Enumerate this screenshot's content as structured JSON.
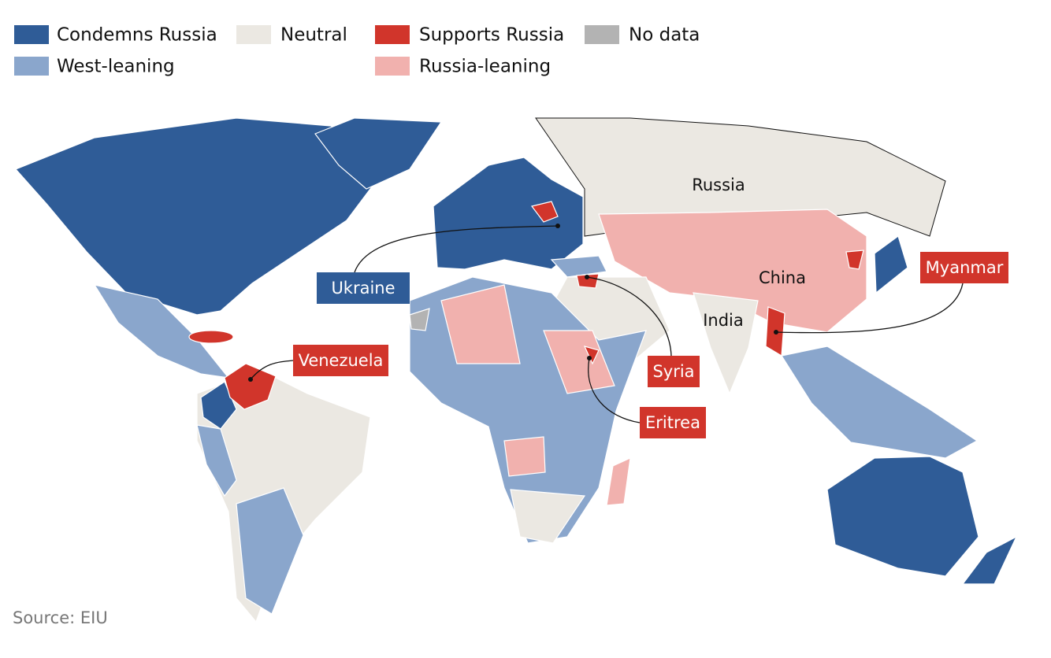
{
  "legend": {
    "items": [
      {
        "label": "Condemns Russia",
        "color": "#2f5c97"
      },
      {
        "label": "Neutral",
        "color": "#ebe8e2"
      },
      {
        "label": "Supports Russia",
        "color": "#d1352b"
      },
      {
        "label": "No data",
        "color": "#b3b3b3"
      },
      {
        "label": "West-leaning",
        "color": "#8aa6cc"
      },
      {
        "label": "Russia-leaning",
        "color": "#f1b1ae"
      }
    ]
  },
  "map": {
    "labels": [
      "Russia",
      "China",
      "India"
    ],
    "callouts": [
      {
        "label": "Ukraine",
        "color": "#2f5c97"
      },
      {
        "label": "Venezuela",
        "color": "#d1352b"
      },
      {
        "label": "Syria",
        "color": "#d1352b"
      },
      {
        "label": "Eritrea",
        "color": "#d1352b"
      },
      {
        "label": "Myanmar",
        "color": "#d1352b"
      }
    ]
  },
  "footer": {
    "source": "Source: EIU"
  }
}
